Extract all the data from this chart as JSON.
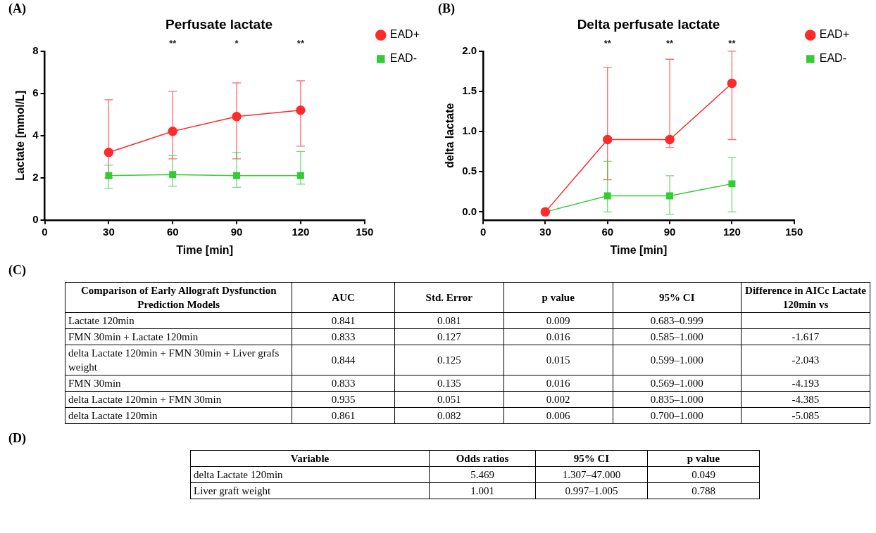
{
  "chart_data": [
    {
      "type": "line",
      "title": "Perfusate lactate",
      "xlabel": "Time [min]",
      "ylabel": "Lactate [mmol/L]",
      "x": [
        30,
        60,
        90,
        120
      ],
      "xlim": [
        0,
        150
      ],
      "xticks": [
        0,
        30,
        60,
        90,
        120,
        150
      ],
      "ylim": [
        0,
        8
      ],
      "yticks": [
        0,
        2,
        4,
        6,
        8
      ],
      "grid": false,
      "legend": "right",
      "line_style": "solid",
      "series": [
        {
          "name": "EAD+",
          "color": "#ff2a2a",
          "marker": "circle",
          "values": [
            3.2,
            4.2,
            4.9,
            5.2
          ],
          "errors": [
            [
              2.0,
              5.7
            ],
            [
              2.9,
              6.1
            ],
            [
              2.9,
              6.5
            ],
            [
              3.5,
              6.6
            ]
          ]
        },
        {
          "name": "EAD-",
          "color": "#33cc33",
          "marker": "square",
          "values": [
            2.1,
            2.15,
            2.1,
            2.1
          ],
          "errors": [
            [
              1.5,
              2.6
            ],
            [
              1.6,
              3.05
            ],
            [
              1.55,
              3.2
            ],
            [
              1.7,
              3.25
            ]
          ]
        }
      ],
      "annotations": [
        "(A)",
        "**",
        "*",
        "**"
      ]
    },
    {
      "type": "line",
      "title": "Delta perfusate lactate",
      "xlabel": "Time [min]",
      "ylabel": "delta lactate",
      "x": [
        30,
        60,
        90,
        120
      ],
      "xlim": [
        0,
        150
      ],
      "xticks": [
        0,
        30,
        60,
        90,
        120,
        150
      ],
      "ylim": [
        -0.1,
        2.0
      ],
      "yticks": [
        {
          "value": 0,
          "label": "0.0"
        },
        {
          "value": 0.5,
          "label": "0.5"
        },
        {
          "value": 1,
          "label": "1.0"
        },
        {
          "value": 1.5,
          "label": "1.5"
        },
        {
          "value": 2,
          "label": "2.0"
        }
      ],
      "grid": false,
      "legend": "right",
      "line_style": "solid",
      "series": [
        {
          "name": "EAD+",
          "color": "#ff2a2a",
          "marker": "circle",
          "values": [
            0,
            0.9,
            0.9,
            1.6
          ],
          "errors": [
            null,
            [
              0.4,
              1.8
            ],
            [
              0.8,
              1.9
            ],
            [
              0.9,
              2.0
            ]
          ]
        },
        {
          "name": "EAD-",
          "color": "#33cc33",
          "marker": "square",
          "values": [
            0,
            0.2,
            0.2,
            0.35
          ],
          "errors": [
            null,
            [
              0,
              0.63
            ],
            [
              -0.03,
              0.45
            ],
            [
              0,
              0.68
            ]
          ]
        }
      ],
      "annotations": [
        "(B)",
        "**",
        "**",
        "**"
      ]
    },
    {
      "type": "other",
      "title": "(C)",
      "categories": [
        "Comparison of Early Allograft Dysfunction Prediction Models",
        "AUC",
        "Std. Error",
        "p value",
        "95% CI",
        "Difference in AICc Lactate 120min vs"
      ],
      "annotations": [
        "Lactate 120min",
        "0.841",
        "0.081",
        "0.009",
        "0.683–0.999",
        null,
        "FMN 30min + Lactate 120min",
        "0.833",
        "0.127",
        "0.016",
        "0.585–1.000",
        "-1.617",
        "delta Lactate 120min + FMN 30min + Liver grafs weight",
        "0.844",
        "0.125",
        "0.015",
        "0.599–1.000",
        "-2.043",
        "FMN 30min",
        "0.833",
        "0.135",
        "0.016",
        "0.569–1.000",
        "-4.193",
        "delta Lactate 120min + FMN 30min",
        "0.935",
        "0.051",
        "0.002",
        "0.835–1.000",
        "-4.385",
        "delta Lactate 120min",
        "0.861",
        "0.082",
        "0.006",
        "0.700–1.000",
        "-5.085"
      ]
    },
    {
      "type": "other",
      "title": "(D)",
      "categories": [
        "Variable",
        "Odds ratios",
        "95% CI",
        "p value"
      ],
      "annotations": [
        "delta Lactate 120min",
        "5.469",
        "1.307–47.000",
        "0.049",
        "Liver graft weight",
        "1.001",
        "0.997–1.005",
        "0.788"
      ]
    }
  ]
}
